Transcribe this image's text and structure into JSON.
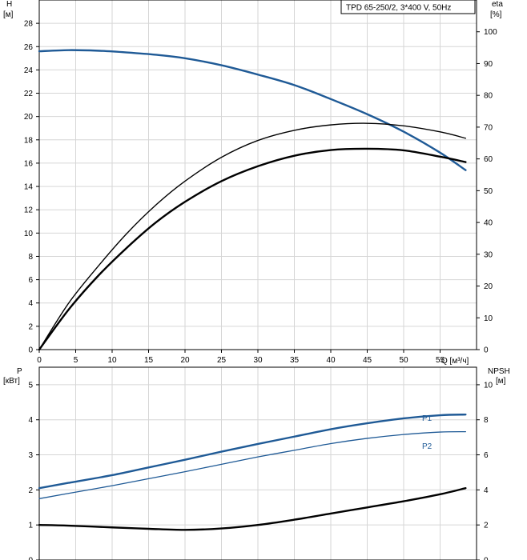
{
  "chart_data": [
    {
      "type": "line",
      "title": "TPD 65-250/2, 3*400 V, 50Hz",
      "xlabel": "Q [м³/ч]",
      "ylabel": "H [м]",
      "ylabel_name": "H",
      "ylabel_unit": "[м]",
      "y2label_name": "eta",
      "y2label_unit": "[%]",
      "xlim": [
        0,
        60
      ],
      "ylim": [
        0,
        30
      ],
      "y2lim": [
        0,
        110
      ],
      "x_ticks": [
        "0",
        "5",
        "10",
        "15",
        "20",
        "25",
        "30",
        "35",
        "40",
        "45",
        "50",
        "55"
      ],
      "x_tick_values": [
        0,
        5,
        10,
        15,
        20,
        25,
        30,
        35,
        40,
        45,
        50,
        55
      ],
      "y_ticks": [
        "0",
        "2",
        "4",
        "6",
        "8",
        "10",
        "12",
        "14",
        "16",
        "18",
        "20",
        "22",
        "24",
        "26",
        "28"
      ],
      "y_tick_values": [
        0,
        2,
        4,
        6,
        8,
        10,
        12,
        14,
        16,
        18,
        20,
        22,
        24,
        26,
        28
      ],
      "y2_ticks": [
        "0",
        "10",
        "20",
        "30",
        "40",
        "50",
        "60",
        "70",
        "80",
        "90",
        "100"
      ],
      "y2_tick_values": [
        0,
        10,
        20,
        30,
        40,
        50,
        60,
        70,
        80,
        90,
        100
      ],
      "grid": true,
      "series": [
        {
          "axis": "y",
          "color": "#1f5a96",
          "width": 2.4,
          "x": [
            0,
            4,
            8,
            12,
            16,
            20,
            25,
            30,
            35,
            40,
            45,
            50,
            55,
            58.5
          ],
          "y": [
            25.6,
            25.7,
            25.65,
            25.5,
            25.3,
            25.0,
            24.4,
            23.6,
            22.7,
            21.5,
            20.2,
            18.7,
            16.9,
            15.4
          ]
        },
        {
          "axis": "y2",
          "color": "#000000",
          "width": 1.4,
          "x": [
            0,
            4,
            8,
            12,
            16,
            20,
            25,
            30,
            35,
            40,
            45,
            50,
            55,
            58.5
          ],
          "y": [
            0,
            14.5,
            26,
            36.5,
            45.5,
            53,
            60.5,
            65.8,
            69,
            70.7,
            71.2,
            70.4,
            68.5,
            66.5
          ]
        },
        {
          "axis": "y2",
          "color": "#000000",
          "width": 2.4,
          "x": [
            0,
            4,
            8,
            12,
            16,
            20,
            25,
            30,
            35,
            40,
            45,
            50,
            55,
            58.5
          ],
          "y": [
            0,
            12.5,
            23,
            32,
            40,
            46.5,
            53,
            57.7,
            61,
            62.8,
            63.2,
            62.7,
            60.7,
            59
          ]
        }
      ]
    },
    {
      "type": "line",
      "ylabel": "P [кВт]",
      "ylabel_name": "P",
      "ylabel_unit": "[кВт]",
      "y2label_name": "NPSH",
      "y2label_unit": "[м]",
      "xlim": [
        0,
        60
      ],
      "ylim": [
        0,
        5.5
      ],
      "y2lim": [
        0,
        11
      ],
      "y_ticks": [
        "0",
        "1",
        "2",
        "3",
        "4",
        "5"
      ],
      "y_tick_values": [
        0,
        1,
        2,
        3,
        4,
        5
      ],
      "y2_ticks": [
        "0",
        "2",
        "4",
        "6",
        "8",
        "10"
      ],
      "y2_tick_values": [
        0,
        2,
        4,
        6,
        8,
        10
      ],
      "grid": true,
      "series": [
        {
          "name": "P1",
          "axis": "y",
          "color": "#1f5a96",
          "width": 2.4,
          "x": [
            0,
            4,
            10,
            15,
            20,
            25,
            30,
            35,
            40,
            45,
            50,
            55,
            58.5
          ],
          "y": [
            2.05,
            2.2,
            2.42,
            2.64,
            2.86,
            3.09,
            3.31,
            3.52,
            3.73,
            3.9,
            4.04,
            4.13,
            4.15
          ]
        },
        {
          "name": "P2",
          "axis": "y",
          "color": "#1f5a96",
          "width": 1.3,
          "x": [
            0,
            4,
            10,
            15,
            20,
            25,
            30,
            35,
            40,
            45,
            50,
            55,
            58.5
          ],
          "y": [
            1.75,
            1.9,
            2.12,
            2.32,
            2.52,
            2.73,
            2.94,
            3.13,
            3.32,
            3.47,
            3.58,
            3.65,
            3.66
          ]
        },
        {
          "axis": "y2",
          "color": "#000000",
          "width": 2.4,
          "x": [
            0,
            4,
            10,
            15,
            20,
            25,
            30,
            35,
            40,
            45,
            50,
            55,
            58.5
          ],
          "y": [
            2.0,
            1.96,
            1.86,
            1.78,
            1.72,
            1.8,
            2.0,
            2.3,
            2.65,
            3.0,
            3.35,
            3.75,
            4.1
          ]
        }
      ]
    }
  ]
}
